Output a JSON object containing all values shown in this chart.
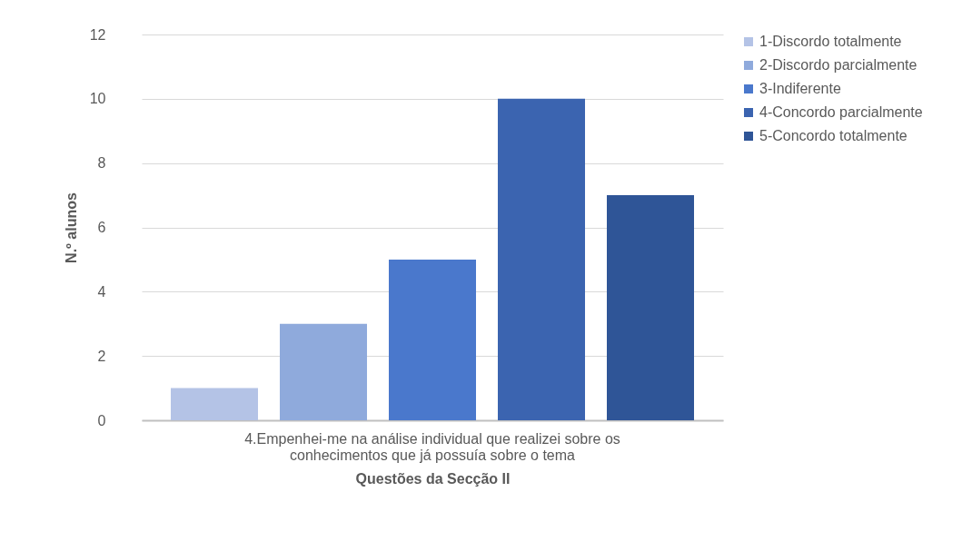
{
  "chart_data": {
    "type": "bar",
    "categories": [
      "4.Empenhei-me na análise individual que realizei sobre os conhecimentos que já possuía sobre o tema"
    ],
    "series": [
      {
        "name": "1-Discordo totalmente",
        "color": "#b4c3e6",
        "values": [
          1
        ]
      },
      {
        "name": "2-Discordo parcialmente",
        "color": "#8faadc",
        "values": [
          3
        ]
      },
      {
        "name": "3-Indiferente",
        "color": "#4a78cc",
        "values": [
          5
        ]
      },
      {
        "name": "4-Concordo parcialmente",
        "color": "#3b64b0",
        "values": [
          10
        ]
      },
      {
        "name": "5-Concordo totalmente",
        "color": "#2f5597",
        "values": [
          7
        ]
      }
    ],
    "xlabel": "Questões da Secção II",
    "ylabel": "N.º alunos",
    "ylim": [
      0,
      12
    ],
    "yticks": [
      0,
      2,
      4,
      6,
      8,
      10,
      12
    ],
    "grid": "y",
    "legend": "right"
  }
}
